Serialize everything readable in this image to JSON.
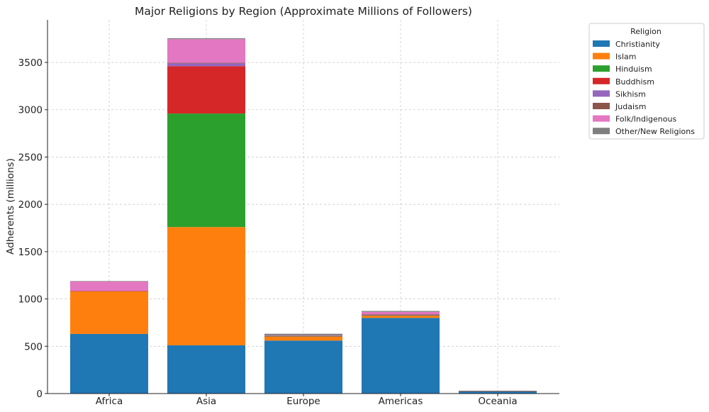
{
  "chart_data": {
    "type": "bar",
    "stacked": true,
    "title": "Major Religions by Region (Approximate Millions of Followers)",
    "xlabel": "",
    "ylabel": "Adherents (millions)",
    "ylim": [
      0,
      3950
    ],
    "yticks": [
      0,
      500,
      1000,
      1500,
      2000,
      2500,
      3000,
      3500
    ],
    "grid": true,
    "legend": {
      "title": "Religion",
      "placement": "outside-top-right"
    },
    "categories": [
      "Africa",
      "Asia",
      "Europe",
      "Americas",
      "Oceania"
    ],
    "series": [
      {
        "name": "Christianity",
        "color": "#1f77b4",
        "values": [
          630,
          510,
          560,
          800,
          25
        ]
      },
      {
        "name": "Islam",
        "color": "#ff7f0e",
        "values": [
          450,
          1250,
          45,
          25,
          1
        ]
      },
      {
        "name": "Hinduism",
        "color": "#2ca02c",
        "values": [
          3,
          1200,
          1,
          2,
          1
        ]
      },
      {
        "name": "Buddhism",
        "color": "#d62728",
        "values": [
          1,
          500,
          2,
          4,
          1
        ]
      },
      {
        "name": "Sikhism",
        "color": "#9467bd",
        "values": [
          0,
          30,
          1,
          1,
          0
        ]
      },
      {
        "name": "Judaism",
        "color": "#8c564b",
        "values": [
          0,
          6,
          1,
          6,
          0
        ]
      },
      {
        "name": "Folk/Indigenous",
        "color": "#e377c2",
        "values": [
          100,
          250,
          2,
          25,
          0
        ]
      },
      {
        "name": "Other/New Religions",
        "color": "#7f7f7f",
        "values": [
          5,
          10,
          20,
          10,
          2
        ]
      }
    ]
  }
}
